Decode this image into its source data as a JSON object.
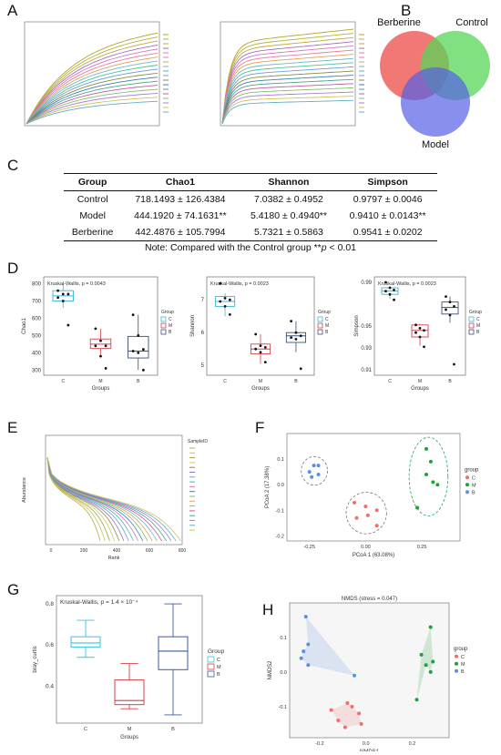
{
  "panels": {
    "a": "A",
    "b": "B",
    "c": "C",
    "d": "D",
    "e": "E",
    "f": "F",
    "g": "G",
    "h": "H"
  },
  "venn": {
    "labels": {
      "left": "Berberine",
      "right": "Control",
      "bottom": "Model"
    },
    "colors": {
      "left": "#f0605d",
      "right": "#57d657",
      "bottom": "#5560e6"
    }
  },
  "table": {
    "headers": [
      "Group",
      "Chao1",
      "Shannon",
      "Simpson"
    ],
    "rows": [
      [
        "Control",
        "718.1493 ± 126.4384",
        "7.0382 ± 0.4952",
        "0.9797 ± 0.0046"
      ],
      [
        "Model",
        "444.1920 ± 74.1631**",
        "5.4180 ± 0.4940**",
        "0.9410 ± 0.0143**"
      ],
      [
        "Berberine",
        "442.4876 ± 105.7994",
        "5.7321 ± 0.5863",
        "0.9541 ± 0.0202"
      ]
    ],
    "note_prefix": "Note: Compared with the Control group  **",
    "note_p": "p",
    "note_suffix": " < 0.01"
  },
  "panel_d": {
    "group_colors": {
      "C": "#3cb6d6",
      "M": "#d9404a",
      "B": "#3a4f7a"
    },
    "chao1": {
      "title": "Kruskal-Wallis, p = 0.0043",
      "ylabel": "Chao1",
      "xlabel": "Groups",
      "yticks": [
        "800",
        "700",
        "600",
        "500",
        "400",
        "300"
      ]
    },
    "shannon": {
      "title": "Kruskal-Wallis, p = 0.0023",
      "ylabel": "Shannon",
      "xlabel": "Groups",
      "yticks": [
        "7",
        "6",
        "5"
      ]
    },
    "simpson": {
      "title": "Kruskal-Wallis, p = 0.0023",
      "ylabel": "Simpson",
      "xlabel": "Groups",
      "yticks": [
        "0.99",
        "0.95",
        "0.93",
        "0.91"
      ]
    },
    "legend_title": "Group",
    "legend_items": [
      "C",
      "M",
      "B"
    ]
  },
  "panel_e": {
    "ylabel": "Abundance",
    "xlabel": "Rank",
    "xticks": [
      "0",
      "200",
      "400",
      "600",
      "800"
    ],
    "legend_title": "SampleID"
  },
  "panel_f": {
    "xlabel": "PCoA 1 (63.08%)",
    "ylabel": "PCoA 2 (17.38%)",
    "xticks": [
      "-0.25",
      "0.00",
      "0.25"
    ],
    "yticks": [
      "0.1",
      "0.0",
      "-0.1",
      "-0.2"
    ],
    "legend_title": "group",
    "legend_items": [
      "C",
      "M",
      "B"
    ],
    "colors": {
      "C": "#ef6f6a",
      "M": "#1aa33a",
      "B": "#5b8ee6"
    }
  },
  "panel_g": {
    "title": "Kruskal-Wallis, p = 1.4 × 10⁻⁴",
    "ylabel": "bray_curtis",
    "xlabel": "Groups",
    "yticks": [
      "0.8",
      "0.6",
      "0.4"
    ],
    "xticks": [
      "C",
      "M",
      "B"
    ],
    "legend_title": "Group",
    "legend_items": [
      "C",
      "M",
      "B"
    ],
    "colors": {
      "C": "#39c4dd",
      "M": "#d9404a",
      "B": "#3a5b9c"
    }
  },
  "panel_h": {
    "title": "NMDS (stress = 0.047)",
    "xlabel": "NMDS1",
    "ylabel": "NMDS2",
    "xticks": [
      "-0.2",
      "0.0",
      "0.2"
    ],
    "yticks": [
      "0.1",
      "0.0",
      "-0.1"
    ],
    "legend_title": "group",
    "legend_items": [
      "C",
      "M",
      "B"
    ],
    "colors": {
      "C": "#ef6f6a",
      "M": "#1aa33a",
      "B": "#5b8ee6"
    }
  },
  "chart_data": [
    {
      "type": "table",
      "panel": "C",
      "columns": [
        "Group",
        "Chao1",
        "Shannon",
        "Simpson"
      ],
      "rows": [
        [
          "Control",
          "718.1493±126.4384",
          "7.0382±0.4952",
          "0.9797±0.0046"
        ],
        [
          "Model",
          "444.1920±74.1631**",
          "5.4180±0.4940**",
          "0.9410±0.0143**"
        ],
        [
          "Berberine",
          "442.4876±105.7994",
          "5.7321±0.5863",
          "0.9541±0.0202"
        ]
      ]
    },
    {
      "type": "box",
      "panel": "D-chao1",
      "categories": [
        "C",
        "M",
        "B"
      ],
      "medians": [
        730,
        450,
        410
      ],
      "q1": [
        700,
        425,
        370
      ],
      "q3": [
        760,
        480,
        495
      ],
      "whisker_low": [
        660,
        380,
        300
      ],
      "whisker_high": [
        800,
        540,
        620
      ],
      "points": {
        "C": [
          760,
          740,
          740,
          720,
          700,
          560
        ],
        "M": [
          540,
          470,
          440,
          440,
          380,
          310
        ],
        "B": [
          620,
          500,
          420,
          410,
          400,
          300
        ]
      }
    },
    {
      "type": "box",
      "panel": "D-shannon",
      "categories": [
        "C",
        "M",
        "B"
      ],
      "medians": [
        6.95,
        5.5,
        5.9
      ],
      "q1": [
        6.8,
        5.35,
        5.7
      ],
      "q3": [
        7.1,
        5.65,
        6.0
      ],
      "whisker_low": [
        6.5,
        5.05,
        5.4
      ],
      "whisker_high": [
        7.2,
        5.95,
        6.35
      ],
      "points": {
        "C": [
          7.5,
          7.05,
          7.0,
          6.95,
          6.8,
          6.55
        ],
        "M": [
          5.95,
          5.6,
          5.55,
          5.5,
          5.4,
          5.1
        ],
        "B": [
          6.35,
          6.0,
          5.9,
          5.85,
          5.8,
          4.9
        ]
      }
    },
    {
      "type": "box",
      "panel": "D-simpson",
      "categories": [
        "C",
        "M",
        "B"
      ],
      "medians": [
        0.982,
        0.946,
        0.967
      ],
      "q1": [
        0.979,
        0.94,
        0.961
      ],
      "q3": [
        0.985,
        0.951,
        0.972
      ],
      "whisker_low": [
        0.975,
        0.932,
        0.953
      ],
      "whisker_high": [
        0.986,
        0.952,
        0.977
      ],
      "points": {
        "C": [
          0.99,
          0.985,
          0.983,
          0.982,
          0.979,
          0.974
        ],
        "M": [
          0.951,
          0.948,
          0.946,
          0.944,
          0.94,
          0.931
        ],
        "B": [
          0.977,
          0.972,
          0.968,
          0.965,
          0.96,
          0.915
        ]
      }
    },
    {
      "type": "scatter",
      "panel": "F",
      "x_label": "PCoA 1 (63.08%)",
      "y_label": "PCoA 2 (17.38%)",
      "series": [
        {
          "name": "C",
          "points": [
            [
              -0.05,
              -0.07
            ],
            [
              0.0,
              -0.085
            ],
            [
              0.05,
              -0.1
            ],
            [
              -0.04,
              -0.13
            ],
            [
              0.01,
              -0.12
            ],
            [
              0.05,
              -0.16
            ]
          ]
        },
        {
          "name": "M",
          "points": [
            [
              0.27,
              0.14
            ],
            [
              0.29,
              0.09
            ],
            [
              0.27,
              0.04
            ],
            [
              0.3,
              0.01
            ],
            [
              0.32,
              0.0
            ],
            [
              0.23,
              -0.09
            ]
          ]
        },
        {
          "name": "B",
          "points": [
            [
              -0.23,
              0.075
            ],
            [
              -0.21,
              0.075
            ],
            [
              -0.25,
              0.05
            ],
            [
              -0.24,
              0.03
            ],
            [
              -0.21,
              0.04
            ]
          ]
        }
      ]
    },
    {
      "type": "box",
      "panel": "G",
      "categories": [
        "C",
        "M",
        "B"
      ],
      "medians": [
        0.61,
        0.33,
        0.57
      ],
      "q1": [
        0.59,
        0.31,
        0.48
      ],
      "q3": [
        0.64,
        0.43,
        0.64
      ],
      "whisker_low": [
        0.54,
        0.29,
        0.26
      ],
      "whisker_high": [
        0.72,
        0.51,
        0.8
      ]
    },
    {
      "type": "scatter",
      "panel": "H",
      "x_label": "NMDS1",
      "y_label": "NMDS2",
      "series": [
        {
          "name": "C",
          "points": [
            [
              -0.15,
              -0.11
            ],
            [
              -0.12,
              -0.14
            ],
            [
              -0.08,
              -0.09
            ],
            [
              -0.06,
              -0.1
            ],
            [
              -0.03,
              -0.12
            ],
            [
              -0.02,
              -0.15
            ],
            [
              -0.09,
              -0.16
            ]
          ]
        },
        {
          "name": "M",
          "points": [
            [
              0.28,
              0.13
            ],
            [
              0.24,
              0.05
            ],
            [
              0.26,
              0.02
            ],
            [
              0.29,
              0.03
            ],
            [
              0.28,
              0.0
            ],
            [
              0.22,
              -0.08
            ]
          ]
        },
        {
          "name": "B",
          "points": [
            [
              -0.26,
              0.16
            ],
            [
              -0.25,
              0.08
            ],
            [
              -0.27,
              0.06
            ],
            [
              -0.28,
              0.04
            ],
            [
              -0.25,
              0.02
            ],
            [
              -0.05,
              -0.01
            ]
          ]
        }
      ]
    }
  ]
}
